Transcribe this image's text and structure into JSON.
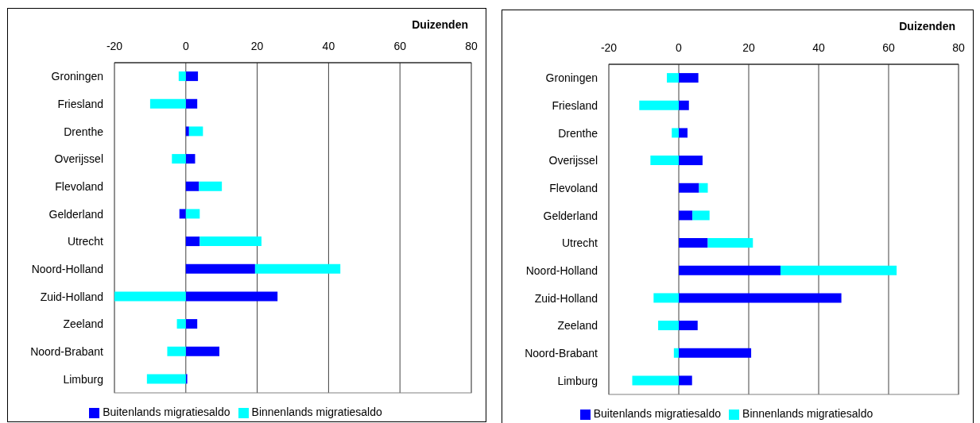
{
  "chart_data": [
    {
      "type": "bar",
      "orientation": "horizontal",
      "stacked": true,
      "xlabel": "Duizenden",
      "categories": [
        "Groningen",
        "Friesland",
        "Drenthe",
        "Overijssel",
        "Flevoland",
        "Gelderland",
        "Utrecht",
        "Noord-Holland",
        "Zuid-Holland",
        "Zeeland",
        "Noord-Brabant",
        "Limburg"
      ],
      "series": [
        {
          "name": "Buitenlands migratiesaldo",
          "color": "#0000ff",
          "values": [
            3.4,
            3.2,
            0.9,
            2.6,
            3.7,
            -1.8,
            3.9,
            19.4,
            25.7,
            3.2,
            9.4,
            0.4
          ]
        },
        {
          "name": "Binnenlands migratiesaldo",
          "color": "#00ffff",
          "values": [
            -2.0,
            -10.0,
            3.9,
            -3.9,
            6.4,
            3.9,
            17.3,
            23.9,
            -20,
            -2.5,
            -5.2,
            -10.9
          ]
        }
      ],
      "xlim": [
        -20,
        80
      ],
      "xticks": [
        -20,
        0,
        20,
        40,
        60,
        80
      ],
      "grid": "x",
      "legend": "bottom"
    },
    {
      "type": "bar",
      "orientation": "horizontal",
      "stacked": true,
      "xlabel": "Duizenden",
      "categories": [
        "Groningen",
        "Friesland",
        "Drenthe",
        "Overijssel",
        "Flevoland",
        "Gelderland",
        "Utrecht",
        "Noord-Holland",
        "Zuid-Holland",
        "Zeeland",
        "Noord-Brabant",
        "Limburg"
      ],
      "series": [
        {
          "name": "Buitenlands migratiesaldo",
          "color": "#0000ff",
          "values": [
            5.6,
            2.9,
            2.5,
            6.8,
            5.8,
            3.9,
            8.3,
            29.1,
            46.5,
            5.4,
            20.7,
            3.8
          ]
        },
        {
          "name": "Binnenlands migratiesaldo",
          "color": "#00ffff",
          "values": [
            -3.4,
            -11.3,
            -2.0,
            -8.1,
            2.5,
            4.9,
            12.9,
            33.2,
            -7.2,
            -5.9,
            -1.4,
            -13.3
          ]
        }
      ],
      "xlim": [
        -20,
        80
      ],
      "xticks": [
        -20,
        0,
        20,
        40,
        60,
        80
      ],
      "grid": "x",
      "legend": "bottom"
    }
  ]
}
